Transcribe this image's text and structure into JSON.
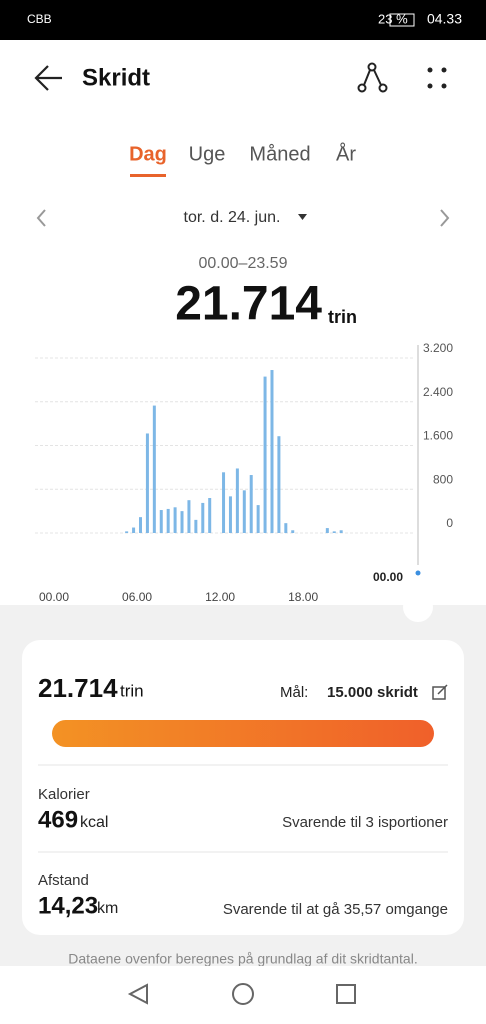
{
  "status_bar": {
    "carrier": "CBB",
    "battery": "23 %",
    "time": "04.33"
  },
  "header": {
    "title": "Skridt"
  },
  "tabs": [
    "Dag",
    "Uge",
    "Måned",
    "År"
  ],
  "date": "tor. d. 24. jun.",
  "range": "00.00–23.59",
  "total": {
    "value": "21.714",
    "unit": "trin"
  },
  "chart_data": {
    "type": "bar",
    "categories": [
      "00.00",
      null,
      null,
      null,
      null,
      null,
      null,
      null,
      null,
      null,
      null,
      null,
      "06.00",
      null,
      null,
      null,
      null,
      null,
      null,
      null,
      null,
      null,
      null,
      null,
      "12.00",
      null,
      null,
      null,
      null,
      null,
      null,
      null,
      null,
      null,
      null,
      null,
      "18.00",
      null,
      null,
      null,
      null,
      null,
      null,
      null,
      null,
      null,
      null,
      null
    ],
    "values": [
      0,
      0,
      0,
      0,
      0,
      0,
      0,
      0,
      0,
      0,
      30,
      100,
      290,
      1820,
      2330,
      420,
      440,
      470,
      400,
      600,
      240,
      550,
      640,
      0,
      1110,
      670,
      1180,
      780,
      1060,
      510,
      2860,
      2980,
      1770,
      180,
      50,
      0,
      0,
      0,
      0,
      90,
      30,
      50,
      0,
      0,
      0,
      0,
      0,
      0
    ],
    "color": "#7db7e6",
    "ylim": [
      0,
      3200
    ],
    "yticks": [
      {
        "value": 3200,
        "label": "3.200"
      },
      {
        "value": 2400,
        "label": "2.400"
      },
      {
        "value": 1600,
        "label": "1.600"
      },
      800,
      0
    ],
    "grid": true,
    "marker_label": "00.00"
  },
  "summary": {
    "steps": "21.714",
    "steps_unit": "trin",
    "goal_label": "Mål:",
    "goal": "15.000 skridt",
    "calories_label": "Kalorier",
    "calories": "469",
    "calories_unit": "kcal",
    "calories_note": "Svarende til 3 isportioner",
    "distance_label": "Afstand",
    "distance": "14,23",
    "distance_unit": "km",
    "distance_note": "Svarende til at gå 35,57 omgange"
  },
  "footer": "Dataene ovenfor beregnes på grundlag af dit skridtantal."
}
